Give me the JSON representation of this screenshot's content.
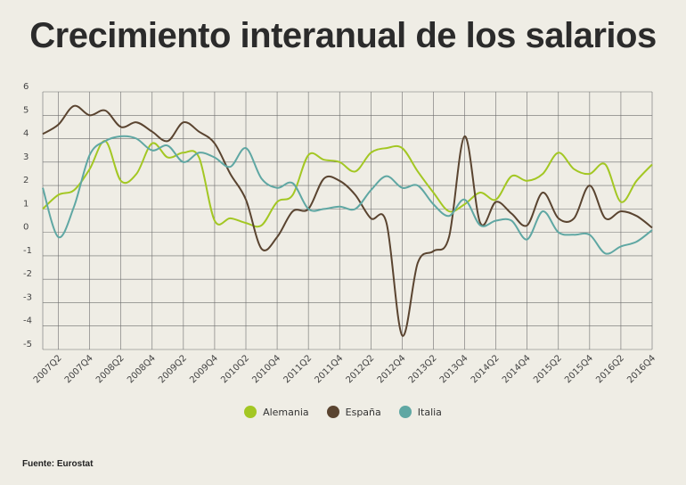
{
  "title": "Crecimiento interanual de los salarios",
  "source": "Fuente: Eurostat",
  "colors": {
    "grid": "#6e6e6e",
    "Alemania": "#a3c723",
    "España": "#5a4430",
    "Italia": "#5fa7a3"
  },
  "chart_data": {
    "type": "line",
    "title": "Crecimiento interanual de los salarios",
    "xlabel": "",
    "ylabel": "",
    "ylim": [
      -5,
      6
    ],
    "grid": true,
    "legend_position": "bottom",
    "x_tick_labels": [
      "2007Q2",
      "2007Q4",
      "2008Q2",
      "2008Q4",
      "2009Q2",
      "2009Q4",
      "2010Q2",
      "2010Q4",
      "2011Q2",
      "2011Q4",
      "2012Q2",
      "2012Q4",
      "2013Q2",
      "2013Q4",
      "2014Q2",
      "2014Q4",
      "2015Q2",
      "2015Q4",
      "2016Q2",
      "2016Q4"
    ],
    "categories": [
      "2007Q1",
      "2007Q2",
      "2007Q3",
      "2007Q4",
      "2008Q1",
      "2008Q2",
      "2008Q3",
      "2008Q4",
      "2009Q1",
      "2009Q2",
      "2009Q3",
      "2009Q4",
      "2010Q1",
      "2010Q2",
      "2010Q3",
      "2010Q4",
      "2011Q1",
      "2011Q2",
      "2011Q3",
      "2011Q4",
      "2012Q1",
      "2012Q2",
      "2012Q3",
      "2012Q4",
      "2013Q1",
      "2013Q2",
      "2013Q3",
      "2013Q4",
      "2014Q1",
      "2014Q2",
      "2014Q3",
      "2014Q4",
      "2015Q1",
      "2015Q2",
      "2015Q3",
      "2015Q4",
      "2016Q1",
      "2016Q2",
      "2016Q3",
      "2016Q4"
    ],
    "series": [
      {
        "name": "Alemania",
        "values": [
          1.0,
          1.6,
          1.8,
          2.7,
          3.9,
          2.2,
          2.5,
          3.8,
          3.2,
          3.4,
          3.2,
          0.5,
          0.6,
          0.4,
          0.3,
          1.3,
          1.6,
          3.3,
          3.1,
          3.0,
          2.6,
          3.4,
          3.6,
          3.6,
          2.6,
          1.7,
          0.9,
          1.2,
          1.7,
          1.4,
          2.4,
          2.2,
          2.5,
          3.4,
          2.7,
          2.5,
          2.9,
          1.3,
          2.2,
          2.9
        ]
      },
      {
        "name": "España",
        "values": [
          4.2,
          4.6,
          5.4,
          5.0,
          5.2,
          4.5,
          4.7,
          4.3,
          3.9,
          4.7,
          4.3,
          3.8,
          2.5,
          1.4,
          -0.7,
          -0.2,
          0.9,
          1.0,
          2.3,
          2.2,
          1.6,
          0.6,
          0.4,
          -4.4,
          -1.3,
          -0.8,
          -0.2,
          4.1,
          0.4,
          1.3,
          0.8,
          0.3,
          1.7,
          0.6,
          0.6,
          2.0,
          0.6,
          0.9,
          0.7,
          0.2
        ]
      },
      {
        "name": "Italia",
        "values": [
          1.9,
          -0.2,
          1.1,
          3.3,
          3.9,
          4.1,
          4.0,
          3.5,
          3.7,
          3.0,
          3.4,
          3.2,
          2.8,
          3.6,
          2.3,
          1.9,
          2.1,
          1.0,
          1.0,
          1.1,
          1.0,
          1.8,
          2.4,
          1.9,
          2.0,
          1.2,
          0.7,
          1.4,
          0.3,
          0.5,
          0.5,
          -0.3,
          0.9,
          0.0,
          -0.1,
          -0.1,
          -0.9,
          -0.6,
          -0.4,
          0.1
        ]
      }
    ]
  }
}
